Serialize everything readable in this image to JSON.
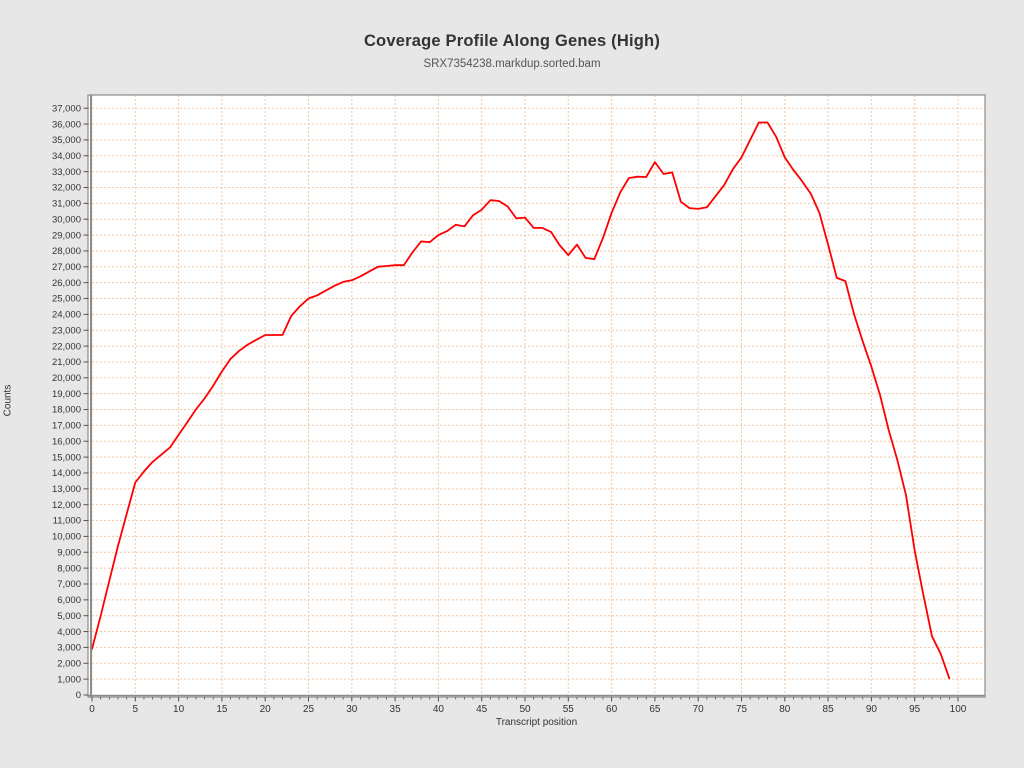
{
  "header": {
    "title": "Coverage Profile Along Genes (High)",
    "subtitle": "SRX7354238.markdup.sorted.bam"
  },
  "chart_data": {
    "type": "line",
    "title": "Coverage Profile Along Genes (High)",
    "subtitle": "SRX7354238.markdup.sorted.bam",
    "xlabel": "Transcript position",
    "ylabel": "Counts",
    "xlim": [
      -0.5,
      103.2
    ],
    "ylim": [
      0,
      37900
    ],
    "grid": "dashed",
    "legend_position": "none",
    "x_tick_step": 5,
    "x_ticks": [
      0,
      5,
      10,
      15,
      20,
      25,
      30,
      35,
      40,
      45,
      50,
      55,
      60,
      65,
      70,
      75,
      80,
      85,
      90,
      95,
      100
    ],
    "x_tick_labels": [
      "0",
      "5",
      "10",
      "15",
      "20",
      "25",
      "30",
      "35",
      "40",
      "45",
      "50",
      "55",
      "60",
      "65",
      "70",
      "75",
      "80",
      "85",
      "90",
      "95",
      "100"
    ],
    "y_tick_step": 1000,
    "y_ticks": [
      0,
      1000,
      2000,
      3000,
      4000,
      5000,
      6000,
      7000,
      8000,
      9000,
      10000,
      11000,
      12000,
      13000,
      14000,
      15000,
      16000,
      17000,
      18000,
      19000,
      20000,
      21000,
      22000,
      23000,
      24000,
      25000,
      26000,
      27000,
      28000,
      29000,
      30000,
      31000,
      32000,
      33000,
      34000,
      35000,
      36000,
      37000
    ],
    "y_tick_labels": [
      "0",
      "1,000",
      "2,000",
      "3,000",
      "4,000",
      "5,000",
      "6,000",
      "7,000",
      "8,000",
      "9,000",
      "10,000",
      "11,000",
      "12,000",
      "13,000",
      "14,000",
      "15,000",
      "16,000",
      "17,000",
      "18,000",
      "19,000",
      "20,000",
      "21,000",
      "22,000",
      "23,000",
      "24,000",
      "25,000",
      "26,000",
      "27,000",
      "28,000",
      "29,000",
      "30,000",
      "31,000",
      "32,000",
      "33,000",
      "34,000",
      "35,000",
      "36,000",
      "37,000"
    ],
    "series": [
      {
        "name": "SRX7354238.markdup.sorted.bam",
        "x": [
          0,
          1,
          2,
          3,
          4,
          5,
          6,
          7,
          8,
          9,
          10,
          11,
          12,
          13,
          14,
          15,
          16,
          17,
          18,
          19,
          20,
          21,
          22,
          23,
          24,
          25,
          26,
          27,
          28,
          29,
          30,
          31,
          32,
          33,
          34,
          35,
          36,
          37,
          38,
          39,
          40,
          41,
          42,
          43,
          44,
          45,
          46,
          47,
          48,
          49,
          50,
          51,
          52,
          53,
          54,
          55,
          56,
          57,
          58,
          59,
          60,
          61,
          62,
          63,
          64,
          65,
          66,
          67,
          68,
          69,
          70,
          71,
          72,
          73,
          74,
          75,
          76,
          77,
          78,
          79,
          80,
          81,
          82,
          83,
          84,
          85,
          86,
          87,
          88,
          89,
          90,
          91,
          92,
          93,
          94,
          95,
          96,
          97,
          98,
          99
        ],
        "y": [
          2900,
          5000,
          7200,
          9400,
          11400,
          13400,
          14100,
          14700,
          15150,
          15600,
          16400,
          17200,
          18000,
          18700,
          19500,
          20400,
          21200,
          21700,
          22100,
          22400,
          22700,
          22700,
          22700,
          23900,
          24500,
          25000,
          25200,
          25500,
          25800,
          26050,
          26150,
          26400,
          26700,
          27000,
          27050,
          27100,
          27100,
          27900,
          28600,
          28550,
          29000,
          29250,
          29650,
          29550,
          30250,
          30600,
          31200,
          31150,
          30800,
          30050,
          30100,
          29450,
          29450,
          29200,
          28370,
          27740,
          28400,
          27560,
          27480,
          28800,
          30400,
          31700,
          32600,
          32680,
          32660,
          33600,
          32850,
          32950,
          31100,
          30700,
          30650,
          30750,
          31450,
          32150,
          33150,
          33900,
          35000,
          36100,
          36100,
          35200,
          33900,
          33100,
          32400,
          31600,
          30400,
          28400,
          26300,
          26100,
          24000,
          22300,
          20700,
          18900,
          16700,
          14800,
          12600,
          9100,
          6300,
          3700,
          2600,
          1050
        ]
      }
    ],
    "colors": {
      "line": "#fe0000",
      "grid": "#f5c8a2",
      "background": "#e7e7e7",
      "plot_background": "#fefefe",
      "frame": "#8c8c8c",
      "tick": "#555555",
      "label_text": "#333333"
    }
  }
}
